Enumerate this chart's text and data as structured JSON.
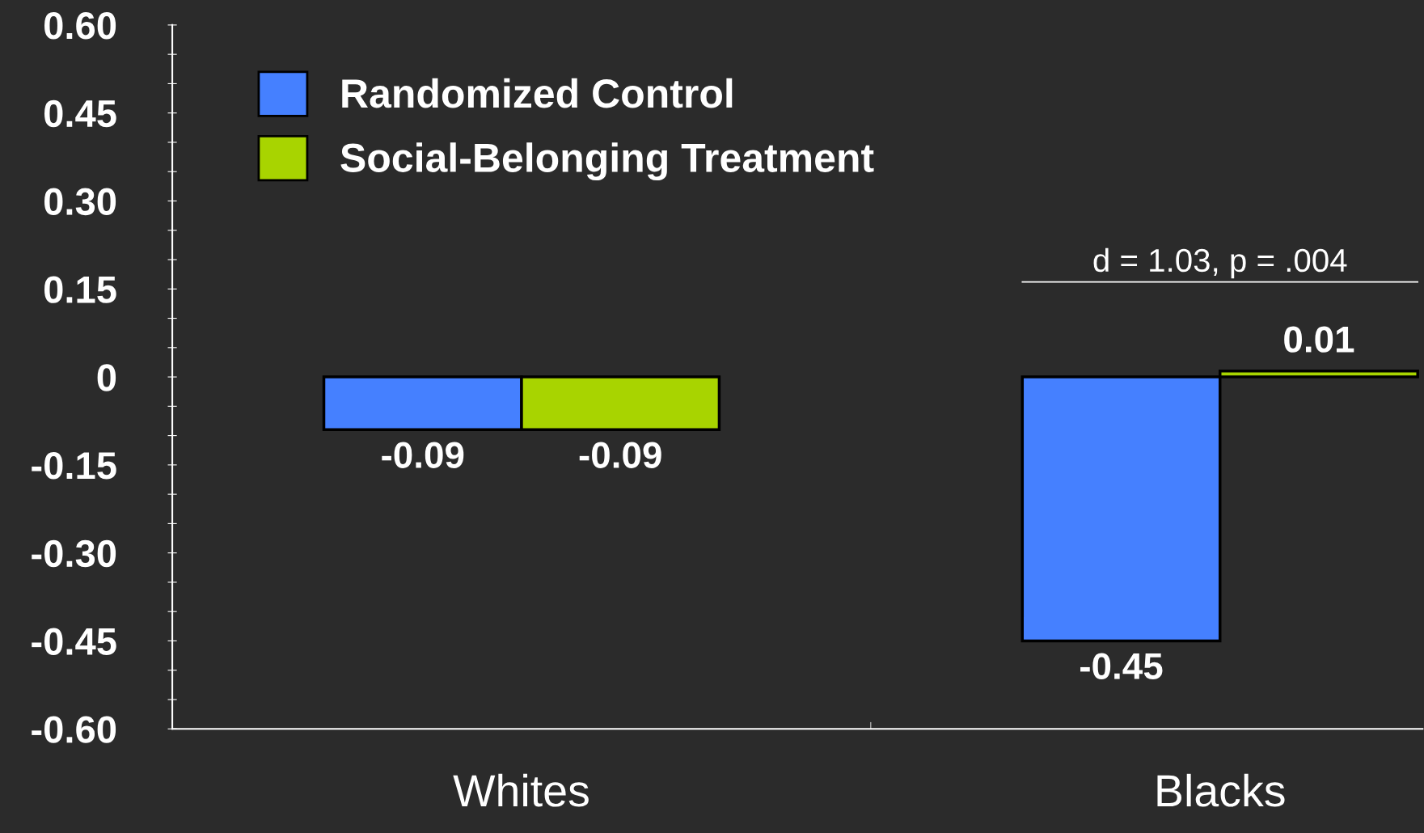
{
  "chart_data": {
    "type": "bar",
    "categories": [
      "Whites",
      "Blacks"
    ],
    "series": [
      {
        "name": "Randomized Control",
        "color": "#4580ff",
        "values": [
          -0.09,
          -0.45
        ]
      },
      {
        "name": "Social-Belonging Treatment",
        "color": "#a8d400",
        "values": [
          -0.09,
          0.01
        ]
      }
    ],
    "ylim": [
      -0.6,
      0.6
    ],
    "yticks": [
      {
        "value": 0.6,
        "label": "0.60"
      },
      {
        "value": 0.55,
        "label": null
      },
      {
        "value": 0.5,
        "label": null
      },
      {
        "value": 0.45,
        "label": "0.45"
      },
      {
        "value": 0.4,
        "label": null
      },
      {
        "value": 0.35,
        "label": null
      },
      {
        "value": 0.3,
        "label": "0.30"
      },
      {
        "value": 0.25,
        "label": null
      },
      {
        "value": 0.2,
        "label": null
      },
      {
        "value": 0.15,
        "label": "0.15"
      },
      {
        "value": 0.1,
        "label": null
      },
      {
        "value": 0.05,
        "label": null
      },
      0,
      {
        "value": -0.05,
        "label": null
      },
      {
        "value": -0.1,
        "label": null
      },
      {
        "value": -0.15,
        "label": "-0.15"
      },
      {
        "value": -0.2,
        "label": null
      },
      {
        "value": -0.25,
        "label": null
      },
      {
        "value": -0.3,
        "label": "-0.30"
      },
      {
        "value": -0.35,
        "label": null
      },
      {
        "value": -0.4,
        "label": null
      },
      {
        "value": -0.45,
        "label": "-0.45"
      },
      {
        "value": -0.5,
        "label": null
      },
      {
        "value": -0.55,
        "label": null
      },
      {
        "value": -0.6,
        "label": "-0.60"
      }
    ],
    "annotations": [
      "d = 1.03, p = .004"
    ],
    "data_labels": true,
    "legend": "top left",
    "grid": false
  }
}
